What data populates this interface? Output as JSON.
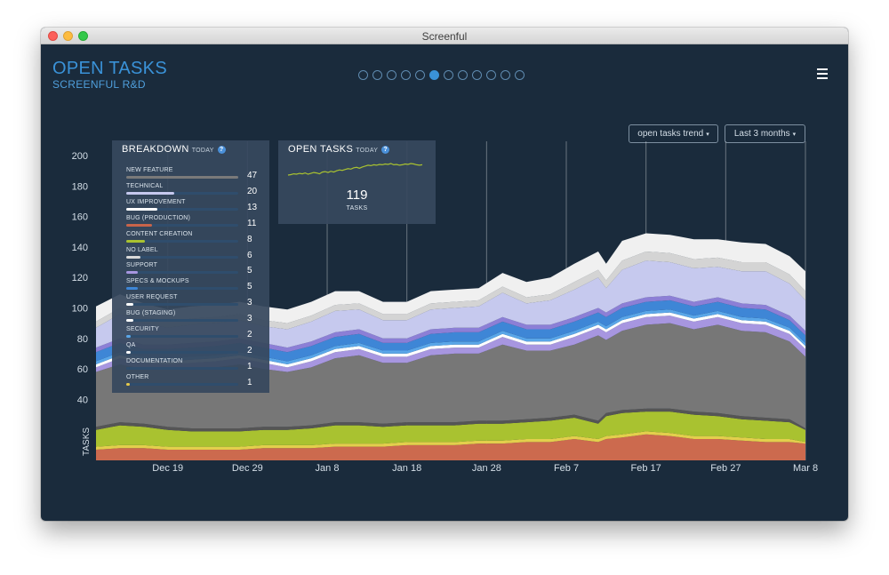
{
  "window": {
    "title": "Screenful"
  },
  "header": {
    "title": "OPEN TASKS",
    "subtitle": "SCREENFUL R&D",
    "pager": {
      "count": 12,
      "active_index": 5
    },
    "menu_icon": "hamburger-icon"
  },
  "controls": {
    "chart_mode": "open tasks trend",
    "range": "Last 3 months",
    "caret": "▾"
  },
  "breakdown": {
    "title": "BREAKDOWN",
    "today": "TODAY",
    "help": "?",
    "items": [
      {
        "label": "NEW FEATURE",
        "count": 47,
        "color": "#7a7a7a"
      },
      {
        "label": "TECHNICAL",
        "count": 20,
        "color": "#c6c9ee"
      },
      {
        "label": "UX IMPROVEMENT",
        "count": 13,
        "color": "#ffffff"
      },
      {
        "label": "BUG (PRODUCTION)",
        "count": 11,
        "color": "#c8644a"
      },
      {
        "label": "CONTENT CREATION",
        "count": 8,
        "color": "#a9c230"
      },
      {
        "label": "NO LABEL",
        "count": 6,
        "color": "#d9d9d9"
      },
      {
        "label": "SUPPORT",
        "count": 5,
        "color": "#a796e0"
      },
      {
        "label": "SPECS & MOCKUPS",
        "count": 5,
        "color": "#3e86d6"
      },
      {
        "label": "USER REQUEST",
        "count": 3,
        "color": "#ffffff"
      },
      {
        "label": "BUG (STAGING)",
        "count": 3,
        "color": "#ffffff"
      },
      {
        "label": "SECURITY",
        "count": 2,
        "color": "#5aa6e8"
      },
      {
        "label": "QA",
        "count": 2,
        "color": "#ffffff"
      },
      {
        "label": "DOCUMENTATION",
        "count": 1,
        "color": "#2f4d6c"
      },
      {
        "label": "OTHER",
        "count": 1,
        "color": "#e6c94a"
      }
    ]
  },
  "open_tasks": {
    "title": "OPEN TASKS",
    "today": "TODAY",
    "help": "?",
    "count": "119",
    "unit": "TASKS",
    "sparkline_color": "#a9c230"
  },
  "chart_data": {
    "type": "area",
    "stacked": true,
    "ylabel": "TASKS",
    "ylim": [
      0,
      200
    ],
    "y_ticks": [
      40,
      60,
      80,
      100,
      120,
      140,
      160,
      180,
      200
    ],
    "x_tick_labels": [
      "Dec 19",
      "Dec 29",
      "Jan 8",
      "Jan 18",
      "Jan 28",
      "Feb 7",
      "Feb 17",
      "Feb 27",
      "Mar 8"
    ],
    "x_tick_days": [
      9,
      19,
      29,
      39,
      49,
      59,
      69,
      79,
      89
    ],
    "x_range_days": [
      0,
      89
    ],
    "vertical_markers_days": [
      9,
      19,
      29,
      39,
      49,
      59,
      69,
      79,
      89
    ],
    "days": [
      0,
      3,
      6,
      9,
      12,
      15,
      18,
      21,
      24,
      27,
      30,
      33,
      36,
      39,
      42,
      45,
      48,
      51,
      54,
      57,
      60,
      63,
      64,
      66,
      69,
      72,
      75,
      78,
      81,
      84,
      87,
      89
    ],
    "series": [
      {
        "name": "BUG (PRODUCTION)",
        "color": "#cc6a4e",
        "values": [
          7,
          8,
          8,
          7,
          7,
          7,
          7,
          8,
          8,
          8,
          9,
          9,
          9,
          10,
          10,
          10,
          11,
          11,
          12,
          12,
          14,
          12,
          14,
          15,
          17,
          16,
          14,
          14,
          13,
          12,
          12,
          11
        ]
      },
      {
        "name": "OTHER",
        "color": "#e3cf4c",
        "values": [
          2,
          2,
          2,
          2,
          2,
          2,
          2,
          2,
          2,
          2,
          2,
          2,
          2,
          2,
          2,
          2,
          2,
          2,
          2,
          2,
          2,
          2,
          2,
          2,
          2,
          2,
          2,
          2,
          2,
          2,
          2,
          1
        ]
      },
      {
        "name": "CONTENT CREATION",
        "color": "#a9c230",
        "values": [
          11,
          13,
          12,
          11,
          10,
          10,
          10,
          10,
          10,
          11,
          12,
          12,
          11,
          11,
          11,
          11,
          11,
          11,
          11,
          12,
          12,
          10,
          13,
          14,
          13,
          14,
          14,
          13,
          12,
          12,
          11,
          8
        ]
      },
      {
        "name": "DOCUMENTATION",
        "color": "#555555",
        "values": [
          2,
          2,
          2,
          2,
          2,
          2,
          2,
          2,
          2,
          2,
          2,
          2,
          2,
          2,
          2,
          2,
          2,
          2,
          2,
          2,
          2,
          2,
          2,
          2,
          2,
          2,
          2,
          2,
          2,
          2,
          2,
          1
        ]
      },
      {
        "name": "NEW FEATURE",
        "color": "#777777",
        "values": [
          36,
          38,
          36,
          38,
          40,
          40,
          42,
          38,
          36,
          38,
          42,
          44,
          40,
          39,
          44,
          45,
          44,
          50,
          45,
          44,
          46,
          56,
          48,
          52,
          55,
          56,
          54,
          58,
          56,
          56,
          51,
          47
        ]
      },
      {
        "name": "SUPPORT",
        "color": "#a796e0",
        "values": [
          3,
          4,
          4,
          3,
          3,
          4,
          4,
          4,
          3,
          4,
          4,
          4,
          4,
          4,
          4,
          4,
          4,
          5,
          4,
          4,
          5,
          5,
          5,
          5,
          5,
          5,
          5,
          5,
          5,
          5,
          5,
          5
        ]
      },
      {
        "name": "QA",
        "color": "#ffffff",
        "values": [
          2,
          2,
          2,
          2,
          2,
          2,
          2,
          2,
          2,
          2,
          2,
          2,
          2,
          2,
          2,
          2,
          2,
          2,
          2,
          2,
          2,
          2,
          2,
          2,
          2,
          2,
          2,
          2,
          2,
          2,
          2,
          2
        ]
      },
      {
        "name": "SECURITY",
        "color": "#5aa6e8",
        "values": [
          2,
          2,
          2,
          2,
          2,
          2,
          2,
          2,
          2,
          2,
          2,
          2,
          2,
          2,
          2,
          2,
          2,
          2,
          2,
          2,
          2,
          2,
          2,
          2,
          2,
          2,
          2,
          2,
          2,
          2,
          2,
          2
        ]
      },
      {
        "name": "SPECS & MOCKUPS",
        "color": "#3e86d6",
        "values": [
          6,
          6,
          5,
          6,
          6,
          6,
          6,
          6,
          6,
          6,
          6,
          6,
          5,
          5,
          6,
          6,
          6,
          6,
          6,
          6,
          6,
          6,
          6,
          6,
          6,
          6,
          6,
          6,
          6,
          6,
          5,
          5
        ]
      },
      {
        "name": "USER REQUEST",
        "color": "#8c7fd6",
        "values": [
          3,
          3,
          3,
          3,
          3,
          3,
          3,
          3,
          3,
          3,
          3,
          3,
          3,
          3,
          3,
          3,
          3,
          3,
          3,
          3,
          3,
          3,
          3,
          3,
          3,
          3,
          3,
          3,
          3,
          3,
          3,
          3
        ]
      },
      {
        "name": "TECHNICAL",
        "color": "#c6c9ee",
        "values": [
          13,
          16,
          14,
          11,
          12,
          12,
          12,
          11,
          12,
          13,
          14,
          13,
          12,
          12,
          13,
          13,
          14,
          16,
          14,
          16,
          18,
          20,
          16,
          22,
          24,
          22,
          22,
          20,
          21,
          22,
          21,
          20
        ]
      },
      {
        "name": "NO LABEL",
        "color": "#d4d4d4",
        "values": [
          4,
          4,
          4,
          4,
          4,
          4,
          4,
          4,
          4,
          4,
          4,
          4,
          4,
          4,
          4,
          4,
          4,
          4,
          4,
          4,
          5,
          5,
          5,
          6,
          6,
          6,
          6,
          6,
          6,
          6,
          6,
          6
        ]
      },
      {
        "name": "UX IMPROVEMENT",
        "color": "#f0f0f0",
        "values": [
          10,
          9,
          9,
          8,
          8,
          8,
          8,
          9,
          9,
          9,
          9,
          8,
          8,
          8,
          8,
          8,
          8,
          9,
          10,
          11,
          12,
          12,
          11,
          13,
          12,
          12,
          13,
          12,
          13,
          12,
          12,
          13
        ]
      }
    ],
    "sparkline": [
      95,
      96,
      98,
      97,
      99,
      98,
      100,
      97,
      99,
      101,
      100,
      98,
      102,
      103,
      101,
      104,
      102,
      105,
      107,
      106,
      108,
      110,
      109,
      112,
      113,
      111,
      114,
      116,
      118,
      117,
      119,
      118,
      120,
      119,
      121,
      120,
      122,
      119,
      120,
      118,
      119,
      121,
      120,
      122,
      121,
      119,
      118,
      119
    ]
  }
}
